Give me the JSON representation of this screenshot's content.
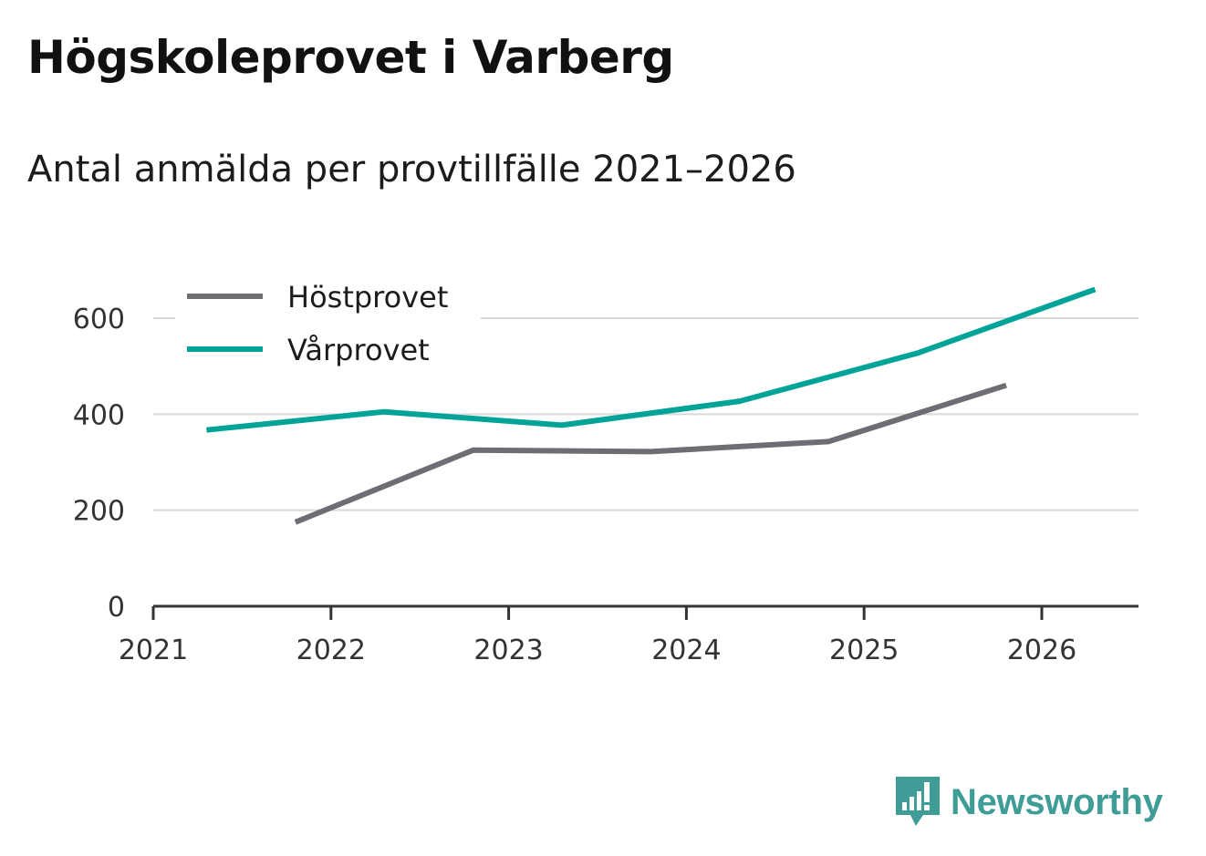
{
  "header": {
    "title": "Högskoleprovet i Varberg",
    "subtitle": "Antal anmälda per provtillfälle 2021–2026"
  },
  "brand": {
    "name": "Newsworthy",
    "icon": "newsworthy-logo-icon",
    "color": "#3f9c96"
  },
  "chart_data": {
    "type": "line",
    "title": "Högskoleprovet i Varberg",
    "subtitle": "Antal anmälda per provtillfälle 2021–2026",
    "xlabel": "",
    "ylabel": "",
    "xlim": [
      2021,
      2026.55
    ],
    "ylim": [
      0,
      700
    ],
    "x_ticks": [
      "2021",
      "2022",
      "2023",
      "2024",
      "2025",
      "2026"
    ],
    "y_ticks": [
      "0",
      "200",
      "400",
      "600"
    ],
    "grid": true,
    "legend_position": "top-left",
    "series": [
      {
        "name": "Höstprovet",
        "color": "#6e6d73",
        "x": [
          2021.8,
          2022.8,
          2023.8,
          2024.8,
          2025.8
        ],
        "values": [
          175,
          325,
          322,
          343,
          460
        ]
      },
      {
        "name": "Vårprovet",
        "color": "#00a398",
        "x": [
          2021.3,
          2022.3,
          2023.3,
          2024.3,
          2025.3,
          2026.3
        ],
        "values": [
          367,
          405,
          377,
          427,
          527,
          660
        ]
      }
    ]
  }
}
